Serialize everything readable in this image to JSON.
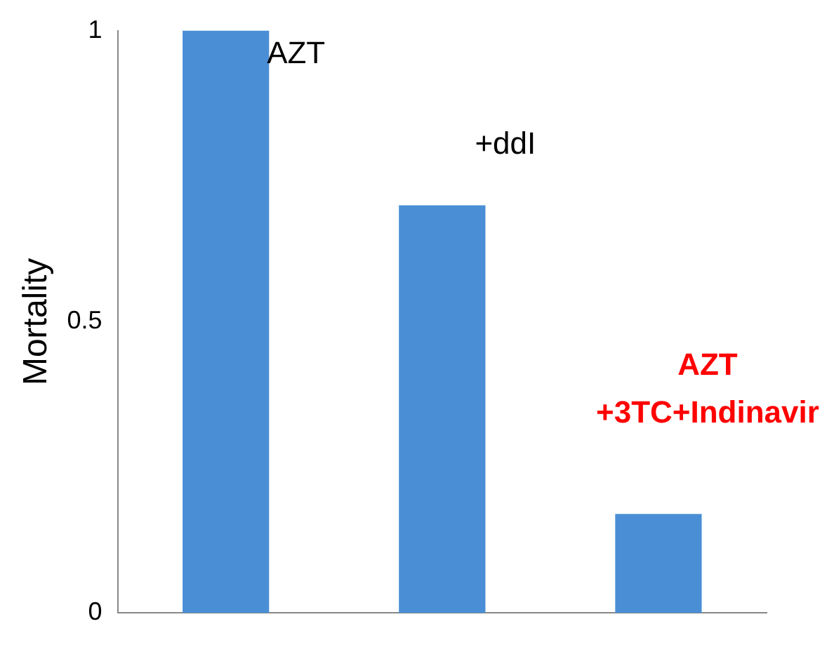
{
  "chart_data": {
    "type": "bar",
    "ylabel": "Mortality",
    "categories": [
      null,
      null,
      null
    ],
    "values": [
      1,
      0.7,
      0.17
    ],
    "color": "#4a8fd6",
    "ylim": [
      0,
      1
    ],
    "yticks": [
      0,
      0.5,
      1
    ],
    "grid": false,
    "legend": false,
    "annotations": [
      "AZT",
      "+ddI",
      "AZT\n+3TC+Indinavir"
    ]
  }
}
